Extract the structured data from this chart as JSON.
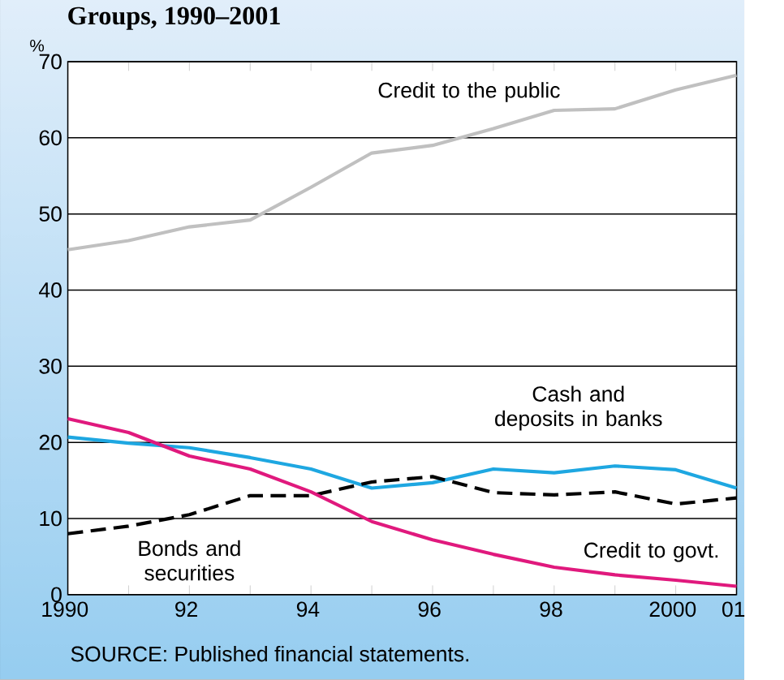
{
  "chart_data": {
    "type": "line",
    "title": "Groups, 1990–2001",
    "ylabel": "%",
    "x": [
      1990,
      1991,
      1992,
      1993,
      1994,
      1995,
      1996,
      1997,
      1998,
      1999,
      2000,
      2001
    ],
    "series": [
      {
        "name": "Credit to the public",
        "color": "#c0c0c0",
        "values": [
          45.3,
          46.5,
          48.3,
          49.2,
          53.5,
          58,
          59,
          61.2,
          63.6,
          63.8,
          66.3,
          68.2
        ]
      },
      {
        "name": "Cash and deposits in banks",
        "color": "#1ea7e1",
        "values": [
          20.7,
          19.9,
          19.3,
          18,
          16.5,
          14,
          14.7,
          16.5,
          16,
          16.9,
          16.4,
          14
        ]
      },
      {
        "name": "Bonds and securities",
        "color": "#000000",
        "line_style": "dashed",
        "values": [
          8,
          9,
          10.5,
          13,
          13,
          14.8,
          15.5,
          13.4,
          13.1,
          13.5,
          11.9,
          12.7
        ]
      },
      {
        "name": "Credit to govt.",
        "color": "#e0197d",
        "values": [
          23.1,
          21.3,
          18.2,
          16.5,
          13.5,
          9.6,
          7.2,
          5.3,
          3.6,
          2.6,
          1.9,
          1.1
        ]
      }
    ],
    "xlim": [
      1990,
      2001
    ],
    "ylim": [
      0,
      70
    ],
    "xticks": [
      {
        "value": 1990,
        "label": "1990"
      },
      {
        "value": 1991,
        "label": null
      },
      {
        "value": 1992,
        "label": "92"
      },
      {
        "value": 1993,
        "label": null
      },
      {
        "value": 1994,
        "label": "94"
      },
      {
        "value": 1995,
        "label": null
      },
      {
        "value": 1996,
        "label": "96"
      },
      {
        "value": 1997,
        "label": null
      },
      {
        "value": 1998,
        "label": "98"
      },
      {
        "value": 1999,
        "label": null
      },
      {
        "value": 2000,
        "label": "2000"
      },
      {
        "value": 2001,
        "label": "01"
      }
    ],
    "yticks": [
      0,
      10,
      20,
      30,
      40,
      50,
      60,
      70
    ],
    "grid": "y",
    "annotations": [
      "SOURCE: Published financial statements."
    ]
  }
}
